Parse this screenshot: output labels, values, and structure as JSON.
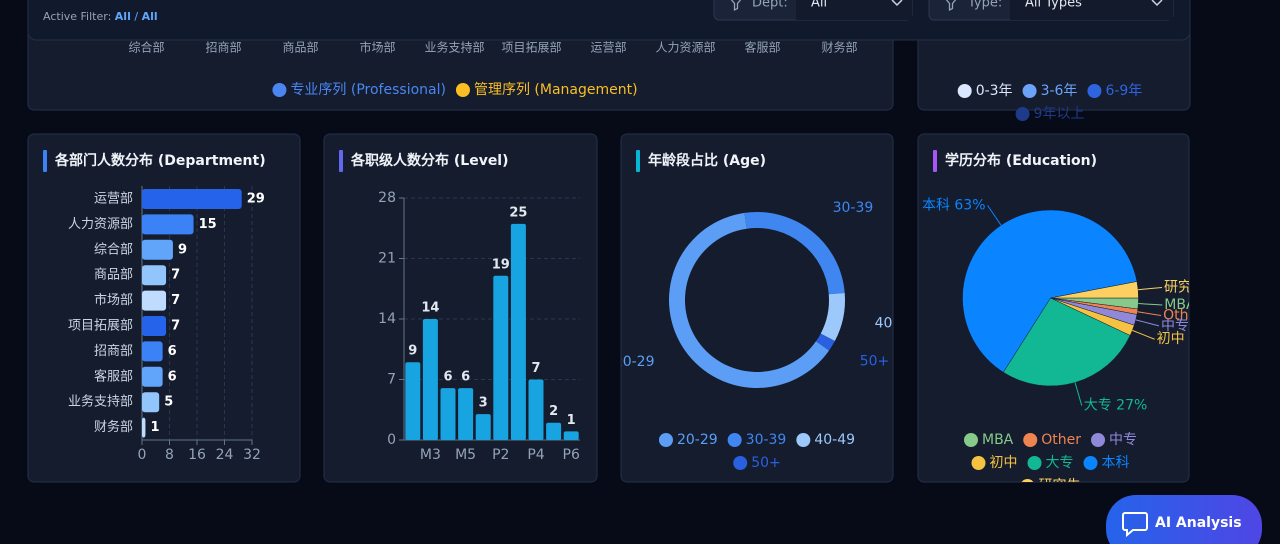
{
  "header": {
    "active_filter_label": "Active Filter:",
    "active_filter_dept": "All",
    "active_filter_separator": "/",
    "active_filter_type": "All"
  },
  "filters": [
    {
      "label": "Dept:",
      "value": "All"
    },
    {
      "label": "Type:",
      "value": "All Types"
    }
  ],
  "chart_data": [
    {
      "type": "bar",
      "categories": [
        "综合部",
        "招商部",
        "商品部",
        "市场部",
        "业务支持部",
        "项目拓展部",
        "运营部",
        "人力资源部",
        "客服部",
        "财务部"
      ],
      "series": [
        {
          "name": "专业序列 (Professional)",
          "color": "#4b86f0"
        },
        {
          "name": "管理序列 (Management)",
          "color": "#fbbf24"
        }
      ]
    },
    {
      "type": "pie",
      "categories": [
        "0-3年",
        "3-6年",
        "6-9年",
        "9年以上"
      ],
      "colors": [
        "#dbe7ff",
        "#6aa3f8",
        "#2f64e0",
        "#1e3a8a"
      ]
    },
    {
      "type": "bar",
      "orientation": "horizontal",
      "title": "各部门人数分布 (Department)",
      "title_accent": "#3b82f6",
      "categories": [
        "运营部",
        "人力资源部",
        "综合部",
        "商品部",
        "市场部",
        "项目拓展部",
        "招商部",
        "客服部",
        "业务支持部",
        "财务部"
      ],
      "values": [
        29,
        15,
        9,
        7,
        7,
        7,
        6,
        6,
        5,
        1
      ],
      "colors": [
        "#2563eb",
        "#3b82f6",
        "#60a5fa",
        "#93c5fd",
        "#bfdbfe",
        "#2563eb",
        "#3b82f6",
        "#60a5fa",
        "#93c5fd",
        "#bfdbfe"
      ],
      "xlim": [
        0,
        32
      ],
      "xticks": [
        0,
        8,
        16,
        24,
        32
      ],
      "grid": true
    },
    {
      "type": "bar",
      "orientation": "vertical",
      "title": "各职级人数分布 (Level)",
      "title_accent": "#6366f1",
      "categories": [
        null,
        "M3",
        null,
        "M5",
        null,
        "P2",
        null,
        "P4",
        null,
        "P6"
      ],
      "values": [
        9,
        14,
        6,
        6,
        3,
        19,
        25,
        7,
        2,
        1
      ],
      "color": "#18a4e0",
      "ylim": [
        0,
        28
      ],
      "yticks": [
        0,
        7,
        14,
        21,
        28
      ],
      "grid": true
    },
    {
      "type": "donut",
      "title": "年龄段占比 (Age)",
      "title_accent": "#06b6d4",
      "categories": [
        "20-29",
        "30-39",
        "40-49",
        "50+"
      ],
      "values": [
        63,
        26,
        9,
        2
      ],
      "colors": [
        "#5c9ef5",
        "#3f86f0",
        "#9cc8fb",
        "#2a5fe0"
      ]
    },
    {
      "type": "pie",
      "title": "学历分布 (Education)",
      "title_accent": "#a855f7",
      "categories": [
        "MBA",
        "Other",
        "中专",
        "初中",
        "大专",
        "本科",
        "研究生"
      ],
      "values": [
        2,
        1,
        2,
        2,
        27,
        63,
        3
      ],
      "value_labels": [
        "MBA",
        "Other",
        "中专",
        "初中",
        "大专 27%",
        "本科 63%",
        "研究生"
      ],
      "colors": [
        "#86c98a",
        "#f08450",
        "#9088d8",
        "#f5c242",
        "#12b894",
        "#0a84ff",
        "#fcd060"
      ]
    }
  ],
  "ai_button": "AI Analysis"
}
